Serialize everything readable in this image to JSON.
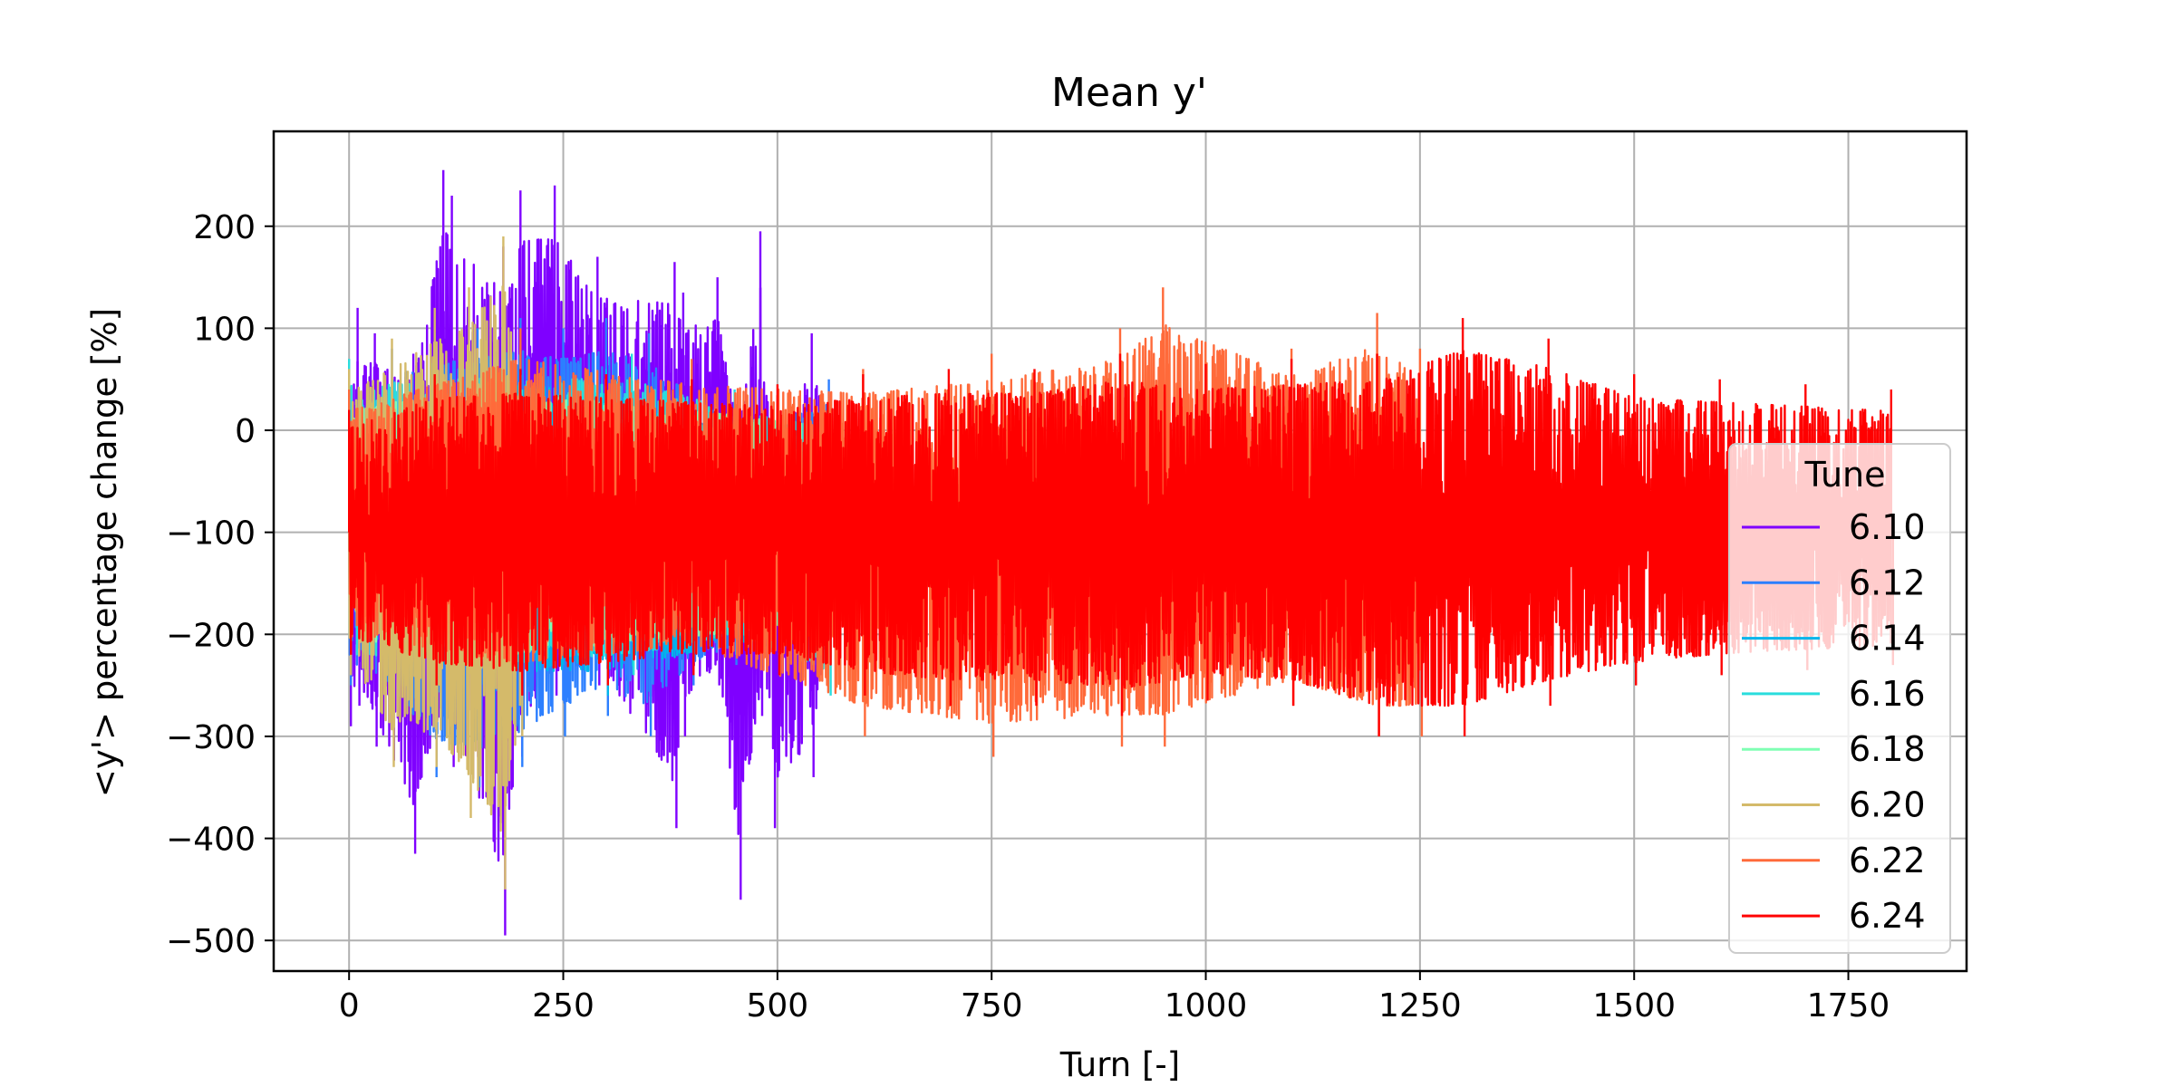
{
  "chart_data": {
    "type": "line",
    "title": "Mean y'",
    "xlabel": "Turn [-]",
    "ylabel": "<y'> percentage change [%]",
    "xlim": [
      -88,
      1888
    ],
    "ylim": [
      -530,
      293
    ],
    "xticks": [
      0,
      250,
      500,
      750,
      1000,
      1250,
      1500,
      1750
    ],
    "yticks": [
      200,
      100,
      0,
      -100,
      -200,
      -300,
      -400,
      -500
    ],
    "xtick_labels": [
      "0",
      "250",
      "500",
      "750",
      "1000",
      "1250",
      "1500",
      "1750"
    ],
    "ytick_labels": [
      "200",
      "100",
      "0",
      "−100",
      "−200",
      "−300",
      "−400",
      "−500"
    ],
    "grid": true,
    "legend": {
      "title": "Tune",
      "location": "lower right"
    },
    "series_note": "dense oscillating traces; values below are representative envelope samples per series",
    "series": [
      {
        "name": "6.10",
        "color": "#7f00ff",
        "x_end": 560,
        "x": [
          0,
          10,
          30,
          75,
          110,
          120,
          180,
          200,
          240,
          290,
          380,
          390,
          430,
          455,
          480,
          495,
          540,
          560
        ],
        "y_max": [
          25,
          120,
          95,
          75,
          255,
          230,
          180,
          235,
          240,
          170,
          165,
          135,
          150,
          10,
          195,
          -30,
          95,
          10
        ],
        "y_min": [
          -290,
          -270,
          -310,
          -415,
          -300,
          -330,
          -495,
          -320,
          -260,
          -250,
          -390,
          -300,
          -250,
          -460,
          -280,
          -390,
          -340,
          -200
        ]
      },
      {
        "name": "6.12",
        "color": "#2c7fff",
        "x_end": 560,
        "x": [
          0,
          50,
          100,
          150,
          200,
          250,
          300,
          350,
          400,
          450,
          500,
          560
        ],
        "y_max": [
          30,
          80,
          95,
          100,
          110,
          100,
          110,
          95,
          60,
          20,
          30,
          50
        ],
        "y_min": [
          -250,
          -280,
          -340,
          -350,
          -330,
          -300,
          -280,
          -300,
          -250,
          -230,
          -220,
          -200
        ]
      },
      {
        "name": "6.14",
        "color": "#00b5eb",
        "x_end": 560,
        "x": [
          0,
          100,
          200,
          300,
          400,
          500,
          560
        ],
        "y_max": [
          30,
          60,
          70,
          60,
          40,
          20,
          20
        ],
        "y_min": [
          -230,
          -250,
          -260,
          -260,
          -240,
          -220,
          -200
        ]
      },
      {
        "name": "6.16",
        "color": "#2adddd",
        "x_end": 560,
        "x": [
          0,
          100,
          200,
          330,
          450,
          560
        ],
        "y_max": [
          70,
          75,
          80,
          75,
          40,
          20
        ],
        "y_min": [
          -240,
          -250,
          -250,
          -240,
          -220,
          -260
        ]
      },
      {
        "name": "6.18",
        "color": "#80ffb4",
        "x_end": 560,
        "x": [
          0,
          100,
          200,
          300,
          400,
          500,
          560
        ],
        "y_max": [
          40,
          60,
          60,
          50,
          40,
          30,
          20
        ],
        "y_min": [
          -220,
          -240,
          -240,
          -230,
          -220,
          -210,
          -200
        ]
      },
      {
        "name": "6.20",
        "color": "#d4ba6a",
        "x_end": 200,
        "x": [
          0,
          50,
          100,
          140,
          180,
          200
        ],
        "y_max": [
          60,
          90,
          120,
          140,
          190,
          60
        ],
        "y_min": [
          -240,
          -330,
          -330,
          -380,
          -450,
          -300
        ]
      },
      {
        "name": "6.22",
        "color": "#ff6a3a",
        "x_end": 1250,
        "x": [
          0,
          200,
          400,
          600,
          750,
          900,
          950,
          1100,
          1200,
          1250
        ],
        "y_max": [
          40,
          100,
          70,
          60,
          75,
          100,
          140,
          80,
          115,
          80
        ],
        "y_min": [
          -220,
          -250,
          -230,
          -300,
          -320,
          -310,
          -310,
          -270,
          -300,
          -300
        ]
      },
      {
        "name": "6.24",
        "color": "#ff0000",
        "x_end": 1800,
        "x": [
          0,
          100,
          200,
          300,
          400,
          500,
          600,
          700,
          800,
          900,
          1000,
          1100,
          1200,
          1300,
          1400,
          1500,
          1600,
          1700,
          1800
        ],
        "y_max": [
          20,
          55,
          60,
          55,
          50,
          45,
          55,
          60,
          60,
          75,
          65,
          70,
          75,
          110,
          90,
          55,
          50,
          45,
          40
        ],
        "y_min": [
          -220,
          -250,
          -260,
          -250,
          -240,
          -240,
          -260,
          -270,
          -270,
          -280,
          -265,
          -270,
          -300,
          -300,
          -270,
          -250,
          -240,
          -235,
          -230
        ]
      }
    ]
  }
}
